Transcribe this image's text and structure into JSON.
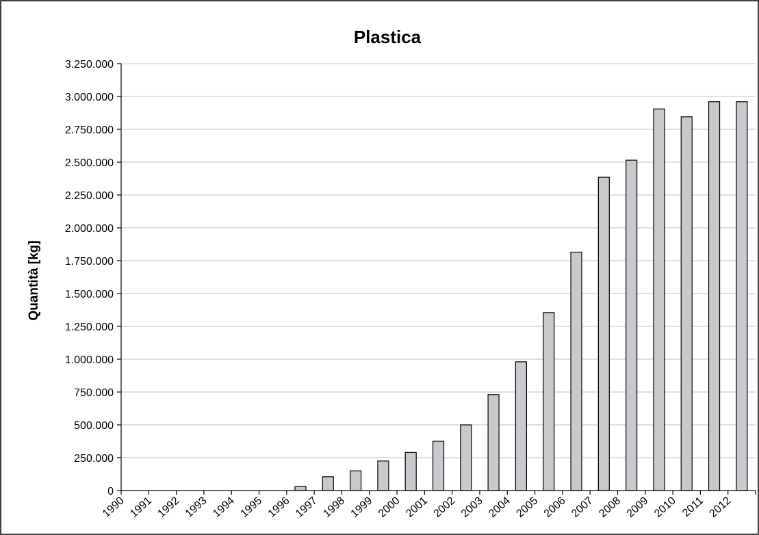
{
  "chart_data": {
    "type": "bar",
    "title": "Plastica",
    "xlabel": "",
    "ylabel": "Quantità [kg]",
    "ylim": [
      0,
      3250000
    ],
    "ytick_step": 250000,
    "ytick_labels": [
      "0",
      "250.000",
      "500.000",
      "750.000",
      "1.000.000",
      "1.250.000",
      "1.500.000",
      "1.750.000",
      "2.000.000",
      "2.250.000",
      "2.500.000",
      "2.750.000",
      "3.000.000",
      "3.250.000"
    ],
    "categories": [
      "1990",
      "1991",
      "1992",
      "1993",
      "1994",
      "1995",
      "1996",
      "1997",
      "1998",
      "1999",
      "2000",
      "2001",
      "2002",
      "2003",
      "2004",
      "2005",
      "2006",
      "2007",
      "2008",
      "2009",
      "2010",
      "2011",
      "2012"
    ],
    "values": [
      0,
      0,
      0,
      0,
      0,
      0,
      30000,
      105000,
      150000,
      225000,
      290000,
      375000,
      500000,
      730000,
      980000,
      1355000,
      1815000,
      2385000,
      2515000,
      2905000,
      2845000,
      2960000,
      2960000
    ],
    "grid": true,
    "colors": {
      "bar_fill": "#c8c9cc",
      "bar_stroke": "#000000",
      "grid": "#c0c0c0"
    }
  }
}
